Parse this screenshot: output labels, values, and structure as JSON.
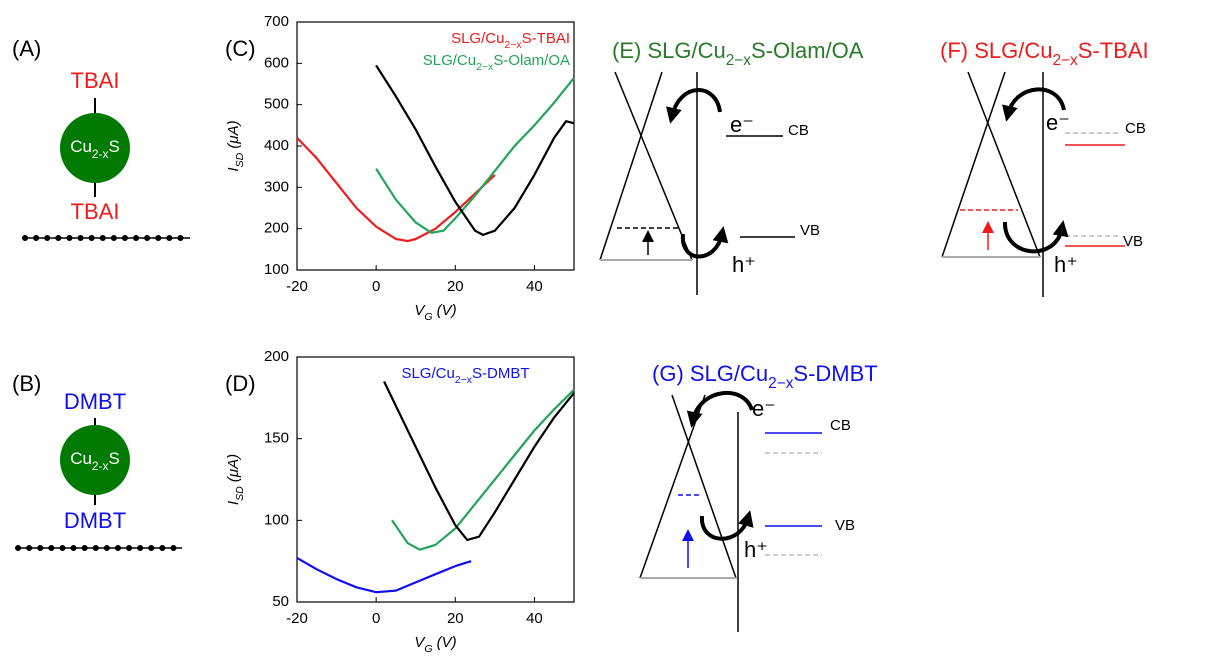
{
  "panels": {
    "A": {
      "label": "(A)",
      "top": "TBAI",
      "particle": "Cu2-xS",
      "bottom": "TBAI"
    },
    "B": {
      "label": "(B)",
      "top": "DMBT",
      "particle": "Cu2-xS",
      "bottom": "DMBT"
    }
  },
  "chart_data": [
    {
      "type": "line",
      "panel_label": "(C)",
      "xlabel": "VG (V)",
      "ylabel": "ISD (μA)",
      "xlim": [
        -20,
        50
      ],
      "xticks": [
        -20,
        0,
        20,
        40
      ],
      "ylim": [
        100,
        700
      ],
      "yticks": [
        100,
        200,
        300,
        400,
        500,
        600,
        700
      ],
      "grid": false,
      "legend": "upper right",
      "series": [
        {
          "name": "SLG/Cu2−xS-TBAI",
          "color": "#ee1c1c",
          "x": [
            -20,
            -15,
            -10,
            -5,
            0,
            5,
            8,
            10,
            15,
            20,
            25,
            30
          ],
          "values": [
            420,
            370,
            310,
            250,
            205,
            175,
            170,
            175,
            200,
            240,
            285,
            330
          ]
        },
        {
          "name": "SLG/Cu2−xS-Olam/OA",
          "color": "#22a55a",
          "x": [
            0,
            5,
            10,
            14,
            17,
            20,
            25,
            30,
            35,
            40,
            45,
            50
          ],
          "values": [
            345,
            270,
            215,
            190,
            195,
            225,
            280,
            340,
            400,
            450,
            505,
            565
          ]
        },
        {
          "color": "#000000",
          "x": [
            0,
            5,
            10,
            15,
            20,
            25,
            27,
            30,
            35,
            40,
            45,
            48,
            50
          ],
          "values": [
            595,
            520,
            440,
            350,
            265,
            195,
            185,
            195,
            250,
            330,
            420,
            460,
            455
          ]
        }
      ]
    },
    {
      "type": "line",
      "panel_label": "(D)",
      "xlabel": "VG (V)",
      "ylabel": "ISD (μA)",
      "xlim": [
        -20,
        50
      ],
      "xticks": [
        -20,
        0,
        20,
        40
      ],
      "ylim": [
        50,
        200
      ],
      "yticks": [
        50,
        100,
        150,
        200
      ],
      "grid": false,
      "legend": "upper center",
      "series": [
        {
          "name": "SLG/Cu2−xS-DMBT",
          "color": "#1010ee",
          "x": [
            -20,
            -15,
            -10,
            -5,
            0,
            5,
            10,
            15,
            20,
            24
          ],
          "values": [
            77,
            70,
            64,
            59,
            56,
            57,
            62,
            67,
            72,
            75
          ]
        },
        {
          "color": "#22a55a",
          "x": [
            4,
            8,
            11,
            15,
            20,
            25,
            30,
            35,
            40,
            45,
            50
          ],
          "values": [
            100,
            86,
            82,
            85,
            95,
            110,
            125,
            140,
            155,
            168,
            180
          ]
        },
        {
          "color": "#000000",
          "x": [
            2,
            5,
            10,
            15,
            20,
            23,
            26,
            30,
            35,
            40,
            45,
            50
          ],
          "values": [
            185,
            170,
            145,
            120,
            97,
            88,
            90,
            105,
            125,
            145,
            163,
            178
          ]
        }
      ]
    }
  ],
  "diagrams": {
    "E": {
      "title": "(E) SLG/Cu2−xS-Olam/OA",
      "electron": "e⁻",
      "hole": "h⁺",
      "cb": "CB",
      "vb": "VB"
    },
    "F": {
      "title": "(F) SLG/Cu2−xS-TBAI",
      "electron": "e⁻",
      "hole": "h⁺",
      "cb": "CB",
      "vb": "VB"
    },
    "G": {
      "title": "(G) SLG/Cu2−xS-DMBT",
      "electron": "e⁻",
      "hole": "h⁺",
      "cb": "CB",
      "vb": "VB"
    }
  }
}
